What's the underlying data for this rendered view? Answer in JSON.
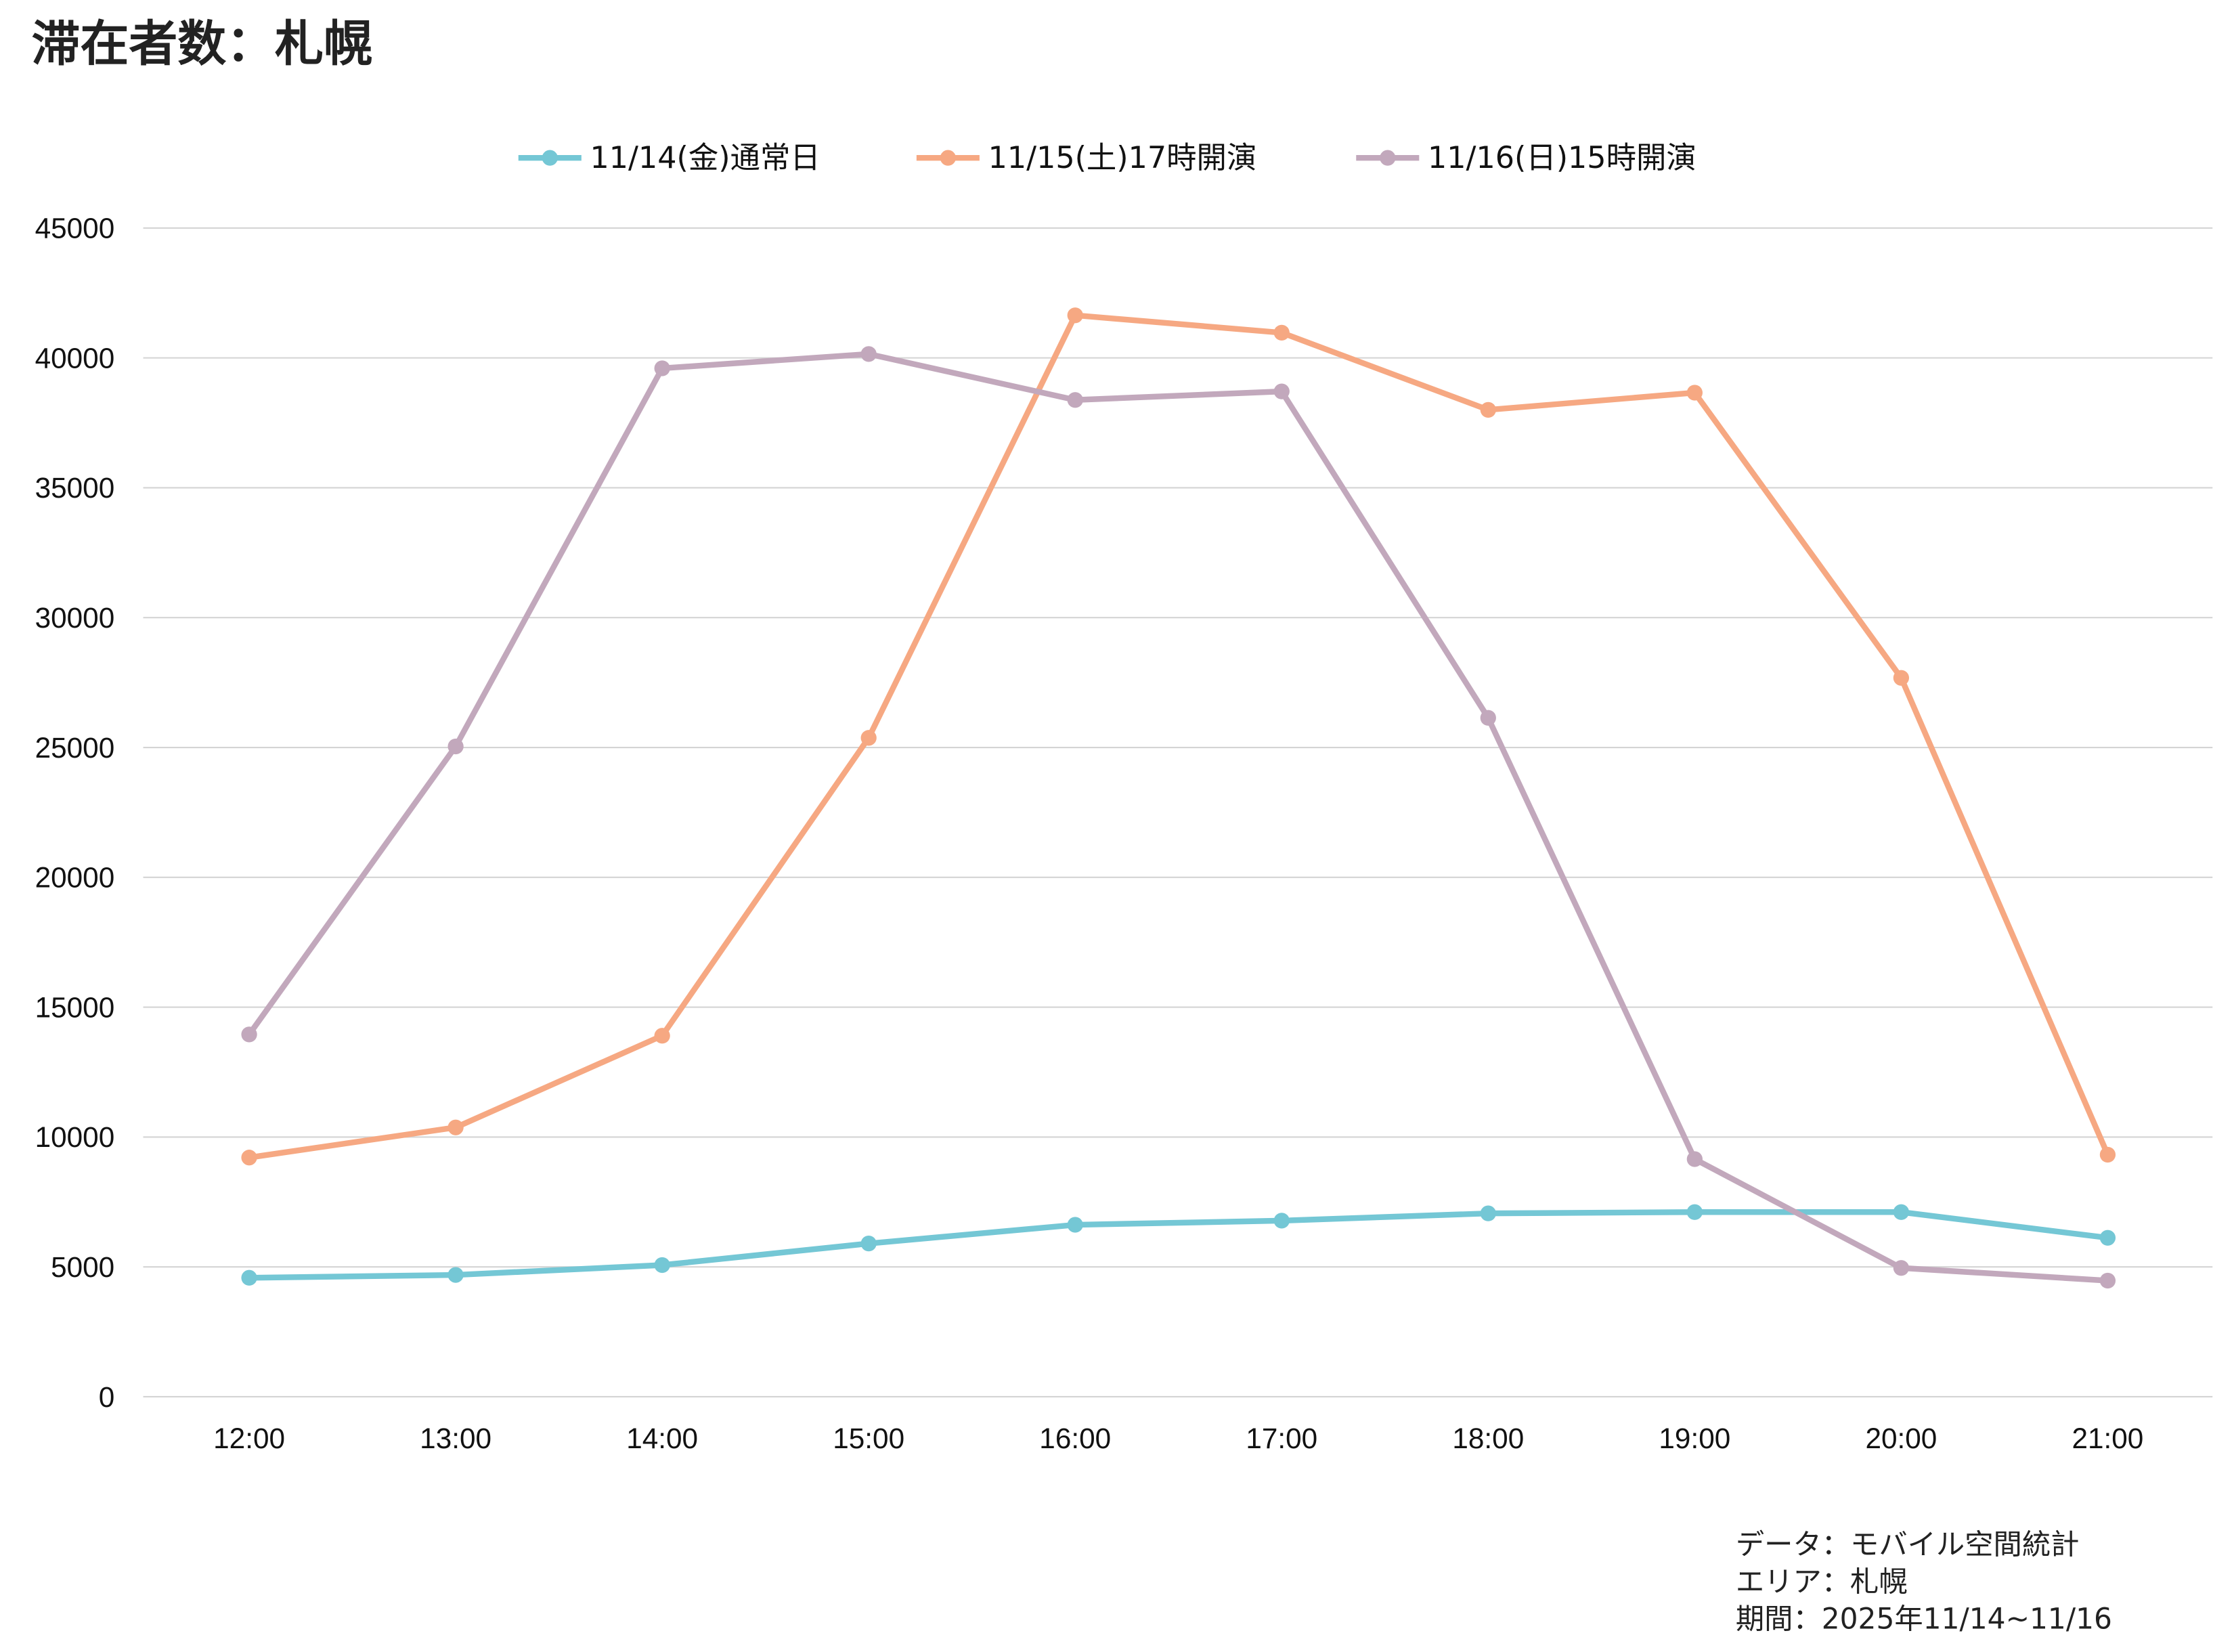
{
  "title": "滞在者数：札幌",
  "chart_data": {
    "type": "line",
    "title": "滞在者数：札幌",
    "xlabel": "",
    "ylabel": "",
    "x": [
      "12:00",
      "13:00",
      "14:00",
      "15:00",
      "16:00",
      "17:00",
      "18:00",
      "19:00",
      "20:00",
      "21:00"
    ],
    "ylim": [
      0,
      45000
    ],
    "yticks": [
      0,
      5000,
      10000,
      15000,
      20000,
      25000,
      30000,
      35000,
      40000,
      45000
    ],
    "grid": true,
    "legend_position": "top-center",
    "series": [
      {
        "name": "11/14(金)通常日",
        "color": "#74C7D5",
        "values": [
          4580,
          4690,
          5070,
          5900,
          6620,
          6780,
          7060,
          7110,
          7110,
          6120
        ]
      },
      {
        "name": "11/15(土)17時開演",
        "color": "#F6A882",
        "values": [
          9210,
          10370,
          13900,
          25370,
          41640,
          40970,
          38000,
          38660,
          27680,
          9320
        ]
      },
      {
        "name": "11/16(日)15時開演",
        "color": "#C2A8BC",
        "values": [
          13950,
          25040,
          39600,
          40150,
          38380,
          38710,
          26140,
          9150,
          4960,
          4470
        ]
      }
    ]
  },
  "notes": [
    "データ：モバイル空間統計",
    "エリア：札幌",
    "期間：2025年11/14~11/16"
  ]
}
